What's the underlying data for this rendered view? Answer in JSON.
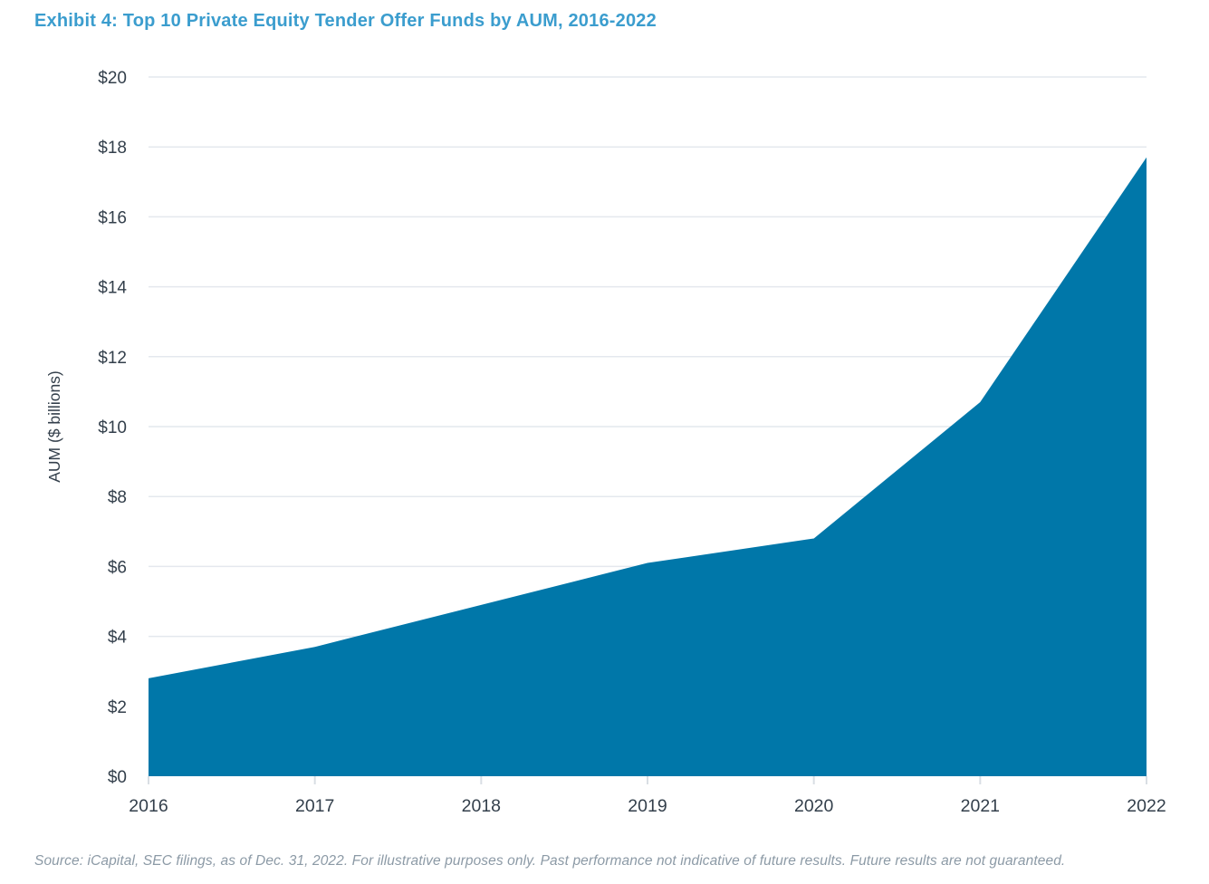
{
  "header": {
    "title": "Exhibit 4: Top 10 Private Equity Tender Offer Funds by AUM, 2016-2022"
  },
  "footer": {
    "source_note": "Source: iCapital, SEC filings, as of Dec. 31, 2022. For illustrative purposes only. Past performance not indicative of future results. Future results are not guaranteed."
  },
  "chart_data": {
    "type": "area",
    "title": "Exhibit 4: Top 10 Private Equity Tender Offer Funds by AUM, 2016-2022",
    "categories": [
      "2016",
      "2017",
      "2018",
      "2019",
      "2020",
      "2021",
      "2022"
    ],
    "series": [
      {
        "name": "Top 10 private equity tender offer funds AUM ($ billions)",
        "values": [
          2.8,
          3.7,
          4.9,
          6.1,
          6.8,
          10.7,
          17.7
        ]
      }
    ],
    "xlabel": "",
    "ylabel": "AUM ($ billions)",
    "ylim": [
      0,
      20
    ],
    "ytick_step": 2,
    "ytick_labels": [
      "$0",
      "$2",
      "$4",
      "$6",
      "$8",
      "$10",
      "$12",
      "$14",
      "$16",
      "$18",
      "$20"
    ],
    "grid": true,
    "legend": "none",
    "colors": {
      "area_fill": "#0077A9",
      "title_text": "#3B9DCE",
      "axis_text": "#333F4B",
      "gridline": "#E4E8EE",
      "tick_mark": "#D9DEE4",
      "source_text": "#8C9AA6"
    }
  }
}
